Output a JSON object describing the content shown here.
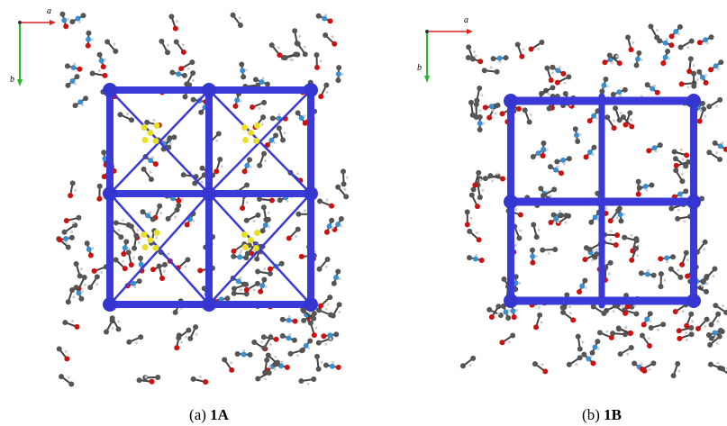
{
  "panels": [
    {
      "axis_a": "a",
      "axis_b": "b",
      "caption": {
        "label": "(a)",
        "compound": "1A"
      }
    },
    {
      "axis_a": "a",
      "axis_b": "b",
      "caption": {
        "label": "(b)",
        "compound": "1B"
      }
    }
  ]
}
